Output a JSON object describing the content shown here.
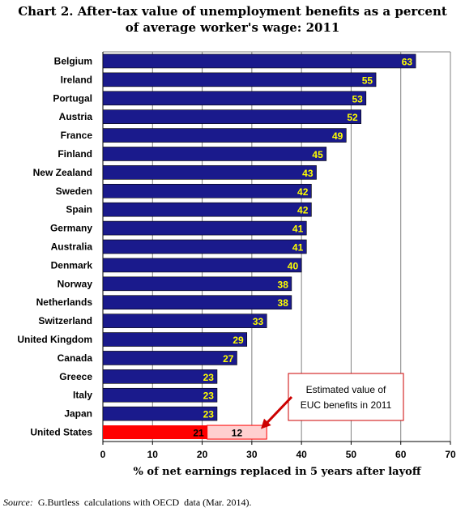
{
  "chart_data": {
    "type": "bar",
    "orientation": "horizontal",
    "title_line1": "Chart 2. After-tax value of unemployment benefits as a percent",
    "title_line2": "of average worker's wage:  2011",
    "xlabel": "% of net earnings replaced in 5 years after layoff",
    "xlim": [
      0,
      70
    ],
    "xticks": [
      0,
      10,
      20,
      30,
      40,
      50,
      60,
      70
    ],
    "grid": "vertical",
    "categories": [
      "Belgium",
      "Ireland",
      "Portugal",
      "Austria",
      "France",
      "Finland",
      "New Zealand",
      "Sweden",
      "Spain",
      "Germany",
      "Australia",
      "Denmark",
      "Norway",
      "Netherlands",
      "Switzerland",
      "United Kingdom",
      "Canada",
      "Greece",
      "Italy",
      "Japan",
      "United States"
    ],
    "values": [
      63,
      55,
      53,
      52,
      49,
      45,
      43,
      42,
      42,
      41,
      41,
      40,
      38,
      38,
      33,
      29,
      27,
      23,
      23,
      23,
      21
    ],
    "value_labels": [
      "63",
      "55",
      "53",
      "52",
      "49",
      "45",
      "43",
      "42",
      "42",
      "41",
      "41",
      "40",
      "38",
      "38",
      "33",
      "29",
      "27",
      "23",
      "23",
      "23",
      "21"
    ],
    "us_extra": {
      "value": 12,
      "label": "12"
    },
    "annotation": {
      "line1": "Estimated value of",
      "line2": "EUC benefits in 2011"
    },
    "colors": {
      "bar": "#1a1a8c",
      "bar_label": "#ffff00",
      "us_bar": "#ff0000",
      "us_extra": "#ffd0d0",
      "us_label": "#000000",
      "arrow": "#cc0000",
      "grid": "#808080"
    }
  },
  "source": {
    "prefix": "Source:",
    "text": "  G.Burtless  calculations with OECD  data (Mar. 2014)."
  }
}
